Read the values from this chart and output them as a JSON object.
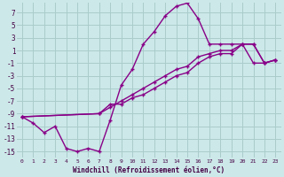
{
  "xlabel": "Windchill (Refroidissement éolien,°C)",
  "background_color": "#cce8e8",
  "grid_color": "#aacccc",
  "line_color": "#880088",
  "xlim": [
    -0.5,
    23.5
  ],
  "ylim": [
    -16,
    8.5
  ],
  "yticks": [
    7,
    5,
    3,
    1,
    -1,
    -3,
    -5,
    -7,
    -9,
    -11,
    -13,
    -15
  ],
  "xticks": [
    0,
    1,
    2,
    3,
    4,
    5,
    6,
    7,
    8,
    9,
    10,
    11,
    12,
    13,
    14,
    15,
    16,
    17,
    18,
    19,
    20,
    21,
    22,
    23
  ],
  "line_curve_x": [
    0,
    1,
    2,
    3,
    4,
    5,
    6,
    7,
    8,
    9,
    10,
    11,
    12,
    13,
    14,
    15,
    16,
    17,
    18,
    19,
    20,
    21,
    22,
    23
  ],
  "line_curve_y": [
    -9.5,
    -10.5,
    -12,
    -11,
    -14.5,
    -15,
    -14.5,
    -15,
    -10,
    -4.5,
    -2,
    2,
    4,
    6.5,
    8,
    8.5,
    6,
    2,
    2,
    2,
    2,
    -1,
    -1,
    -0.5
  ],
  "line_diag1_x": [
    0,
    7,
    8,
    9,
    10,
    11,
    12,
    13,
    14,
    15,
    16,
    17,
    18,
    19,
    20,
    21,
    22,
    23
  ],
  "line_diag1_y": [
    -9.5,
    -9,
    -7.5,
    -7.5,
    -6.5,
    -6,
    -5,
    -4,
    -3,
    -2.5,
    -1,
    0,
    0.5,
    0.5,
    2,
    2,
    -1,
    -0.5
  ],
  "line_diag2_x": [
    0,
    7,
    8,
    9,
    10,
    11,
    12,
    13,
    14,
    15,
    16,
    17,
    18,
    19,
    20,
    21,
    22,
    23
  ],
  "line_diag2_y": [
    -9.5,
    -9,
    -8,
    -7,
    -6,
    -5,
    -4,
    -3,
    -2,
    -1.5,
    0,
    0.5,
    1,
    1,
    2,
    2,
    -1,
    -0.5
  ]
}
